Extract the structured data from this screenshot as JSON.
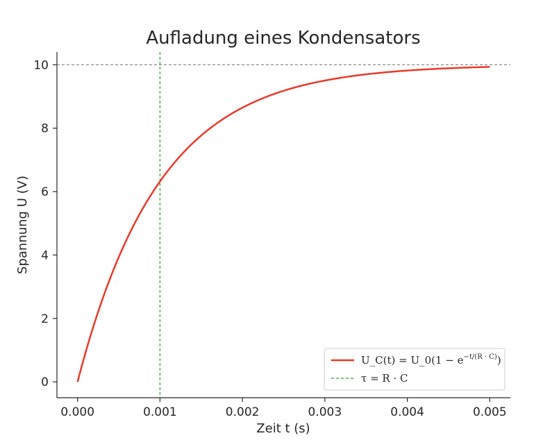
{
  "chart_data": {
    "type": "line",
    "title": "Aufladung eines Kondensators",
    "xlabel": "Zeit t (s)",
    "ylabel": "Spannung U (V)",
    "xlim": [
      -0.00025,
      0.00525
    ],
    "ylim": [
      -0.5,
      10.4
    ],
    "xticks": [
      0.0,
      0.001,
      0.002,
      0.003,
      0.004,
      0.005
    ],
    "xtick_labels": [
      "0.000",
      "0.001",
      "0.002",
      "0.003",
      "0.004",
      "0.005"
    ],
    "yticks": [
      0,
      2,
      4,
      6,
      8,
      10
    ],
    "ytick_labels": [
      "0",
      "2",
      "4",
      "6",
      "8",
      "10"
    ],
    "grid": false,
    "legend_position": "lower-right",
    "series": [
      {
        "name": "U_C(t) = U_0(1 − e^(−t/(R·C)))",
        "color": "#e8392b",
        "style": "solid",
        "x": [
          0.0,
          0.00025,
          0.0005,
          0.00075,
          0.001,
          0.00125,
          0.0015,
          0.00175,
          0.002,
          0.00225,
          0.0025,
          0.00275,
          0.003,
          0.00325,
          0.0035,
          0.00375,
          0.004,
          0.00425,
          0.0045,
          0.00475,
          0.005
        ],
        "y": [
          0.0,
          2.21,
          3.93,
          5.28,
          6.32,
          7.13,
          7.77,
          8.26,
          8.65,
          8.95,
          9.18,
          9.36,
          9.5,
          9.61,
          9.7,
          9.76,
          9.82,
          9.86,
          9.89,
          9.91,
          9.93
        ]
      }
    ],
    "reference_lines": [
      {
        "name": "τ = R · C",
        "orientation": "vertical",
        "value": 0.001,
        "color": "#2ca02c",
        "style": "dashed",
        "in_legend": true
      },
      {
        "orientation": "horizontal",
        "value": 10,
        "color": "#888888",
        "style": "dashed",
        "in_legend": false
      }
    ],
    "legend_entries": [
      {
        "label_main": "U_C(t) = U_0(1 − e",
        "label_sup": "−t/(R · C)",
        "label_end": ")",
        "color": "#e8392b",
        "style": "solid"
      },
      {
        "label_main": "τ = R · C",
        "color": "#2ca02c",
        "style": "dashed"
      }
    ]
  }
}
